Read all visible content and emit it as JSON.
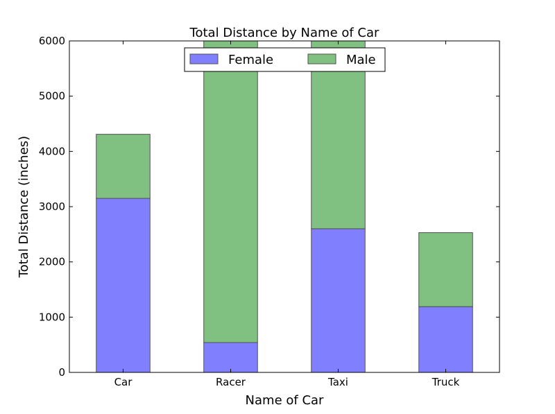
{
  "chart_data": {
    "type": "bar",
    "stacked": true,
    "title": "Total Distance by Name of Car",
    "xlabel": "Name of Car",
    "ylabel": "Total Distance (inches)",
    "categories": [
      "Car",
      "Racer",
      "Taxi",
      "Truck"
    ],
    "series": [
      {
        "name": "Female",
        "values": [
          3150,
          540,
          2600,
          1190
        ],
        "color": "#8080ff"
      },
      {
        "name": "Male",
        "values": [
          1160,
          5460,
          3400,
          1340
        ],
        "color": "#80c080"
      }
    ],
    "ylim": [
      0,
      6000
    ],
    "yticks": [
      0,
      1000,
      2000,
      3000,
      4000,
      5000,
      6000
    ],
    "grid": false,
    "legend_position": "top-center",
    "edge_color": "#505050"
  }
}
